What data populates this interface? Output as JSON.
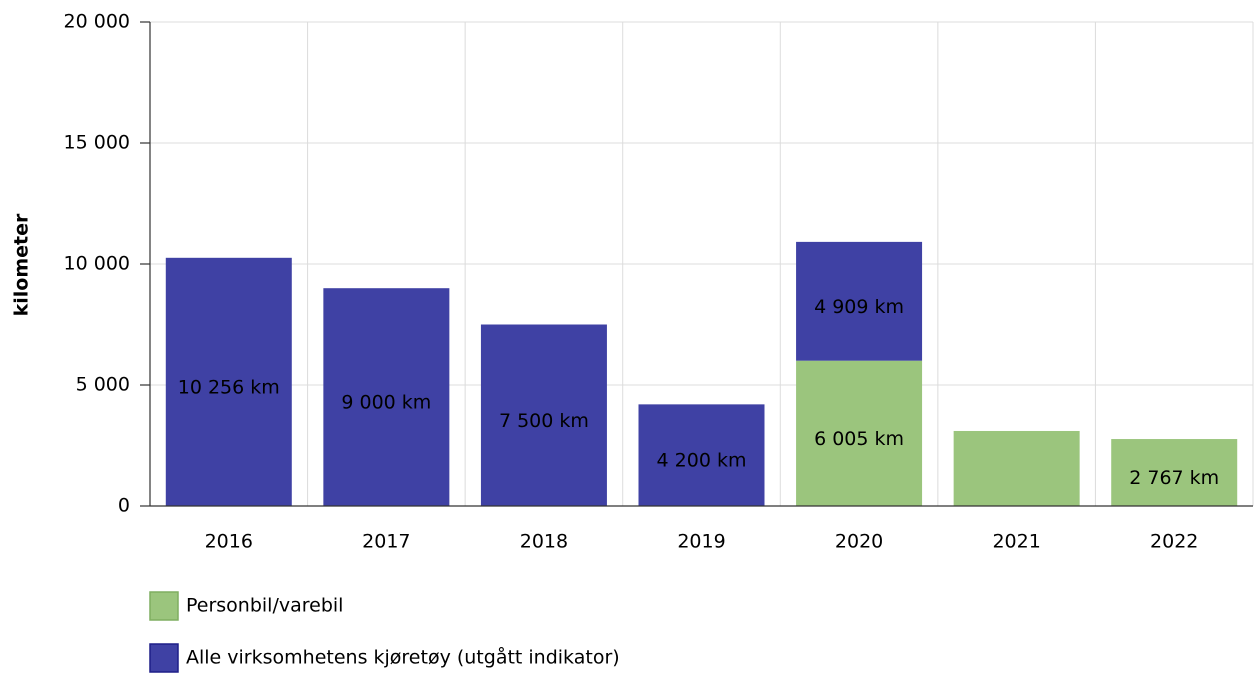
{
  "chart_data": {
    "type": "stacked_bar",
    "y_label": "kilometer",
    "categories": [
      "2016",
      "2017",
      "2018",
      "2019",
      "2020",
      "2021",
      "2022"
    ],
    "series": [
      {
        "name": "Personbil/varebil",
        "color": "#9bc57d",
        "border": "#7fae60",
        "values": [
          null,
          null,
          null,
          null,
          6005,
          3100,
          2767
        ],
        "value_labels": [
          null,
          null,
          null,
          null,
          "6 005 km",
          null,
          "2 767 km"
        ]
      },
      {
        "name": "Alle virksomhetens kjøretøy (utgått indikator)",
        "color": "#3f41a4",
        "border": "#1f1f88",
        "values": [
          10256,
          9000,
          7500,
          4200,
          4909,
          null,
          null
        ],
        "value_labels": [
          "10 256 km",
          "9 000 km",
          "7 500 km",
          "4 200 km",
          "4 909 km",
          null,
          null
        ]
      }
    ],
    "ylim": [
      0,
      20000
    ],
    "yticks": [
      0,
      {
        "value": 5000,
        "label": "5 000"
      },
      {
        "value": 10000,
        "label": "10 000"
      },
      {
        "value": 15000,
        "label": "15 000"
      },
      {
        "value": 20000,
        "label": "20 000"
      }
    ],
    "grid": true,
    "legend": "bottom-left"
  }
}
